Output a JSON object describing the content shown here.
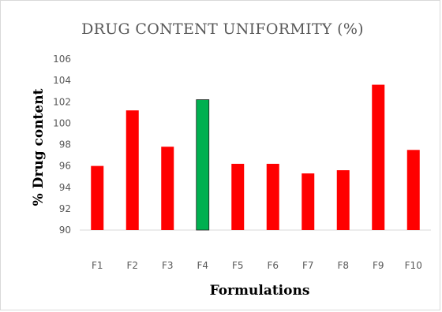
{
  "chart_data": {
    "type": "bar",
    "title": "DRUG CONTENT UNIFORMITY (%)",
    "xlabel": "Formulations",
    "ylabel": "% Drug content",
    "categories": [
      "F1",
      "F2",
      "F3",
      "F4",
      "F5",
      "F6",
      "F7",
      "F8",
      "F9",
      "F10"
    ],
    "values": [
      96.0,
      101.2,
      97.8,
      102.2,
      96.2,
      96.2,
      95.3,
      95.6,
      103.6,
      97.5
    ],
    "ylim": [
      90,
      106
    ],
    "yticks": [
      "90",
      "92",
      "94",
      "96",
      "98",
      "100",
      "102",
      "104",
      "106"
    ],
    "bar_color": "#ff0000",
    "highlight_color": "#00b050",
    "highlight_category": "F4",
    "grid": false,
    "legend": "none"
  }
}
